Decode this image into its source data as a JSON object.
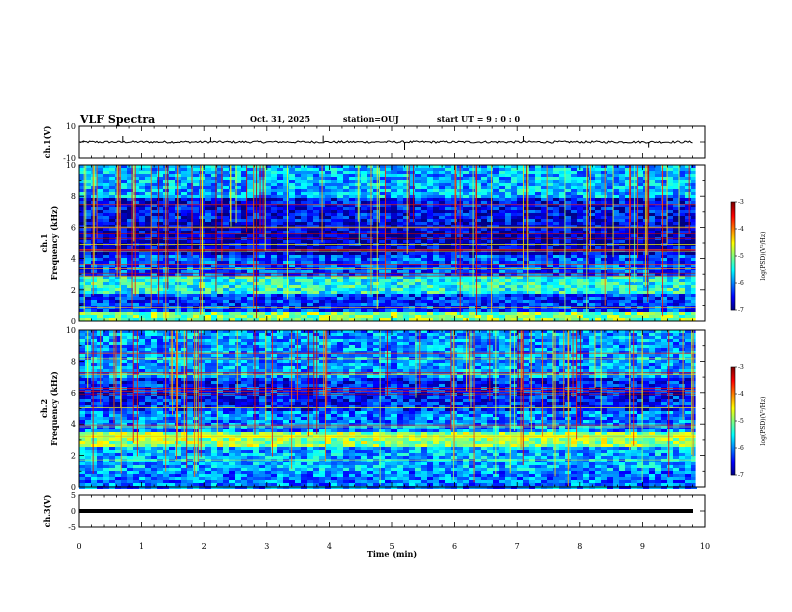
{
  "header": {
    "title": "VLF Spectra",
    "date": "Oct. 31, 2025",
    "station": "station=OUJ",
    "start": "start UT =  9 : 0 : 0"
  },
  "chart_data": [
    {
      "type": "line",
      "name": "ch1-waveform",
      "ylabel": "ch.1(V)",
      "ylim": [
        -10,
        10
      ],
      "yticks": [
        "10",
        "-10"
      ],
      "xlim": [
        0,
        10
      ],
      "level": 0,
      "spikes": [
        {
          "x": 0.7,
          "y": 1.5
        },
        {
          "x": 2.1,
          "y": 1.2
        },
        {
          "x": 3.9,
          "y": 1.6
        },
        {
          "x": 5.2,
          "y": -2.0
        },
        {
          "x": 7.1,
          "y": 1.5
        },
        {
          "x": 9.1,
          "y": -1.4
        }
      ]
    },
    {
      "type": "heatmap",
      "name": "ch1-spectrogram",
      "ylabel": "ch.1 Frequency (kHz)",
      "ylim": [
        0,
        10
      ],
      "yticks": [
        "0",
        "2",
        "4",
        "6",
        "8",
        "10"
      ],
      "xlim": [
        0,
        9.85
      ],
      "colorbar": {
        "label": "log(PSD)(V²/Hz)",
        "range": [
          -7,
          -3
        ],
        "ticks": [
          "-3",
          "-4",
          "-5",
          "-6",
          "-7"
        ]
      },
      "bands": [
        {
          "f0": 0,
          "f1": 0.6,
          "level": -5.0
        },
        {
          "f0": 0.6,
          "f1": 1.8,
          "level": -6.3
        },
        {
          "f0": 1.8,
          "f1": 3.0,
          "level": -5.4
        },
        {
          "f0": 3.0,
          "f1": 4.4,
          "level": -6.2
        },
        {
          "f0": 4.4,
          "f1": 6.4,
          "level": -6.7
        },
        {
          "f0": 6.4,
          "f1": 8.0,
          "level": -6.5
        },
        {
          "f0": 8.0,
          "f1": 10.0,
          "level": -5.8
        }
      ]
    },
    {
      "type": "heatmap",
      "name": "ch2-spectrogram",
      "ylabel": "ch.2 Frequency (kHz)",
      "ylim": [
        0,
        10
      ],
      "yticks": [
        "0",
        "2",
        "4",
        "6",
        "8",
        "10"
      ],
      "xlim": [
        0,
        9.85
      ],
      "colorbar": {
        "label": "log(PSD)(V²/Hz)",
        "range": [
          -7,
          -3
        ],
        "ticks": [
          "-3",
          "-4",
          "-5",
          "-6",
          "-7"
        ]
      },
      "bands": [
        {
          "f0": 0,
          "f1": 1.2,
          "level": -6.0
        },
        {
          "f0": 1.2,
          "f1": 2.6,
          "level": -5.8
        },
        {
          "f0": 2.6,
          "f1": 3.6,
          "level": -4.9
        },
        {
          "f0": 3.6,
          "f1": 5.0,
          "level": -6.0
        },
        {
          "f0": 5.0,
          "f1": 7.0,
          "level": -6.4
        },
        {
          "f0": 7.0,
          "f1": 10.0,
          "level": -5.9
        }
      ]
    },
    {
      "type": "line",
      "name": "ch3-waveform",
      "ylabel": "ch.3(V)",
      "ylim": [
        -5,
        5
      ],
      "yticks": [
        "5",
        "0",
        "-5"
      ],
      "xlim": [
        0,
        10
      ],
      "level": 0
    }
  ],
  "xaxis": {
    "xlabel": "Time (min)",
    "xlim": [
      0,
      10
    ],
    "ticks": [
      "0",
      "1",
      "2",
      "3",
      "4",
      "5",
      "6",
      "7",
      "8",
      "9",
      "10"
    ]
  }
}
